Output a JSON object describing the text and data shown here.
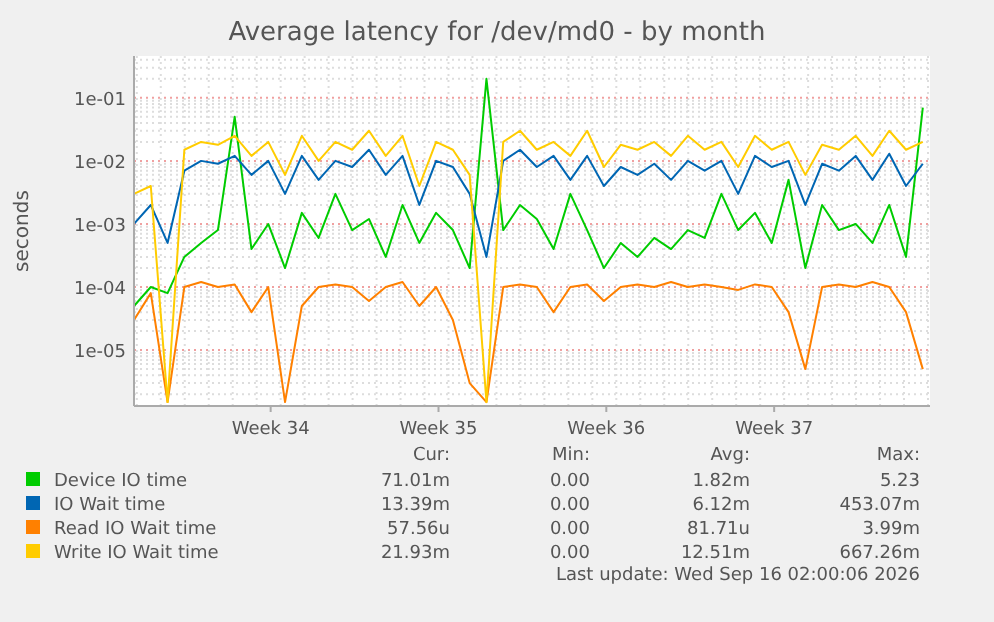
{
  "chart_data": {
    "type": "line",
    "title": "Average latency for /dev/md0 - by month",
    "ylabel": "seconds",
    "log": "y",
    "grid": true,
    "legend": "bottom",
    "marker": "none",
    "line_style": "solid",
    "x": [
      "2026-08-13T21:12",
      "2026-08-14T14:00",
      "2026-08-15T06:48",
      "2026-08-15T23:36",
      "2026-08-16T16:24",
      "2026-08-17T09:12",
      "2026-08-18T02:00",
      "2026-08-18T18:48",
      "2026-08-19T11:36",
      "2026-08-20T04:24",
      "2026-08-20T21:12",
      "2026-08-21T14:00",
      "2026-08-22T06:48",
      "2026-08-22T23:36",
      "2026-08-23T16:24",
      "2026-08-24T09:12",
      "2026-08-25T02:00",
      "2026-08-25T18:48",
      "2026-08-26T11:36",
      "2026-08-27T04:24",
      "2026-08-27T21:12",
      "2026-08-28T14:00",
      "2026-08-29T06:48",
      "2026-08-29T23:36",
      "2026-08-30T16:24",
      "2026-08-31T09:12",
      "2026-09-01T02:00",
      "2026-09-01T18:48",
      "2026-09-02T11:36",
      "2026-09-03T04:24",
      "2026-09-03T21:12",
      "2026-09-04T14:00",
      "2026-09-05T06:48",
      "2026-09-05T23:36",
      "2026-09-06T16:24",
      "2026-09-07T09:12",
      "2026-09-08T02:00",
      "2026-09-08T18:48",
      "2026-09-09T11:36",
      "2026-09-10T04:24",
      "2026-09-10T21:12",
      "2026-09-11T14:00",
      "2026-09-12T06:48",
      "2026-09-12T23:36",
      "2026-09-13T16:24",
      "2026-09-14T09:12",
      "2026-09-15T02:00",
      "2026-09-15T18:48"
    ],
    "xlim": [
      "2026-08-13T21:12",
      "2026-09-16T02:00"
    ],
    "xticks": [
      {
        "value": "2026-08-19T14:00",
        "label": "Week 34"
      },
      {
        "value": "2026-08-26T14:00",
        "label": "Week 35"
      },
      {
        "value": "2026-09-02T14:00",
        "label": "Week 36"
      },
      {
        "value": "2026-09-09T14:00",
        "label": "Week 37"
      }
    ],
    "ylim": [
      1.3e-06,
      0.46
    ],
    "yticks": [
      {
        "value": 0.1,
        "label": "1e-01"
      },
      {
        "value": 0.01,
        "label": "1e-02"
      },
      {
        "value": 0.001,
        "label": "1e-03"
      },
      {
        "value": 0.0001,
        "label": "1e-04"
      },
      {
        "value": 1e-05,
        "label": "1e-05"
      }
    ],
    "series": [
      {
        "name": "Device IO time",
        "color": "#00cc00",
        "values": [
          5e-05,
          0.0001,
          8e-05,
          0.0003,
          0.0005,
          0.0008,
          0.05,
          0.0004,
          0.001,
          0.0002,
          0.0015,
          0.0006,
          0.003,
          0.0008,
          0.0012,
          0.0003,
          0.002,
          0.0005,
          0.0015,
          0.0008,
          0.0002,
          0.2,
          0.0008,
          0.002,
          0.0012,
          0.0004,
          0.003,
          0.0008,
          0.0002,
          0.0005,
          0.0003,
          0.0006,
          0.0004,
          0.0008,
          0.0006,
          0.003,
          0.0008,
          0.0015,
          0.0005,
          0.005,
          0.0002,
          0.002,
          0.0008,
          0.001,
          0.0005,
          0.002,
          0.0003,
          0.07
        ]
      },
      {
        "name": "IO Wait time",
        "color": "#0066b3",
        "values": [
          0.001,
          0.002,
          0.0005,
          0.007,
          0.01,
          0.009,
          0.012,
          0.006,
          0.01,
          0.003,
          0.012,
          0.005,
          0.01,
          0.008,
          0.015,
          0.006,
          0.012,
          0.002,
          0.01,
          0.008,
          0.003,
          0.0003,
          0.01,
          0.015,
          0.008,
          0.012,
          0.005,
          0.012,
          0.004,
          0.008,
          0.006,
          0.009,
          0.005,
          0.01,
          0.007,
          0.01,
          0.003,
          0.012,
          0.008,
          0.01,
          0.002,
          0.009,
          0.007,
          0.012,
          0.005,
          0.013,
          0.004,
          0.009
        ]
      },
      {
        "name": "Read IO Wait time",
        "color": "#ff8000",
        "values": [
          3e-05,
          8e-05,
          1.5e-06,
          0.0001,
          0.00012,
          0.0001,
          0.00011,
          4e-05,
          0.0001,
          1.5e-06,
          5e-05,
          0.0001,
          0.00011,
          0.0001,
          6e-05,
          0.0001,
          0.00012,
          5e-05,
          0.0001,
          3e-05,
          3e-06,
          1.5e-06,
          0.0001,
          0.00011,
          0.0001,
          4e-05,
          0.0001,
          0.00011,
          6e-05,
          0.0001,
          0.00011,
          0.0001,
          0.00012,
          0.0001,
          0.00011,
          0.0001,
          9e-05,
          0.00011,
          0.0001,
          4e-05,
          5e-06,
          0.0001,
          0.00011,
          0.0001,
          0.00012,
          0.0001,
          4e-05,
          5e-06
        ]
      },
      {
        "name": "Write IO Wait time",
        "color": "#ffcc00",
        "values": [
          0.003,
          0.004,
          1.5e-06,
          0.015,
          0.02,
          0.018,
          0.025,
          0.012,
          0.02,
          0.006,
          0.025,
          0.01,
          0.02,
          0.015,
          0.03,
          0.012,
          0.025,
          0.004,
          0.02,
          0.015,
          0.006,
          1.5e-06,
          0.02,
          0.03,
          0.015,
          0.02,
          0.012,
          0.03,
          0.008,
          0.018,
          0.015,
          0.02,
          0.012,
          0.025,
          0.015,
          0.02,
          0.008,
          0.025,
          0.015,
          0.02,
          0.006,
          0.018,
          0.015,
          0.025,
          0.012,
          0.03,
          0.015,
          0.02
        ]
      }
    ],
    "annotations": [
      "Cur:",
      "Min:",
      "Avg:",
      "Max:",
      "71.01m",
      "0.00",
      "1.82m",
      "5.23",
      "13.39m",
      "0.00",
      "6.12m",
      "453.07m",
      "57.56u",
      "0.00",
      "81.71u",
      "3.99m",
      "21.93m",
      "0.00",
      "12.51m",
      "667.26m",
      "Last update: Wed Sep 16 02:00:06 2026"
    ]
  }
}
